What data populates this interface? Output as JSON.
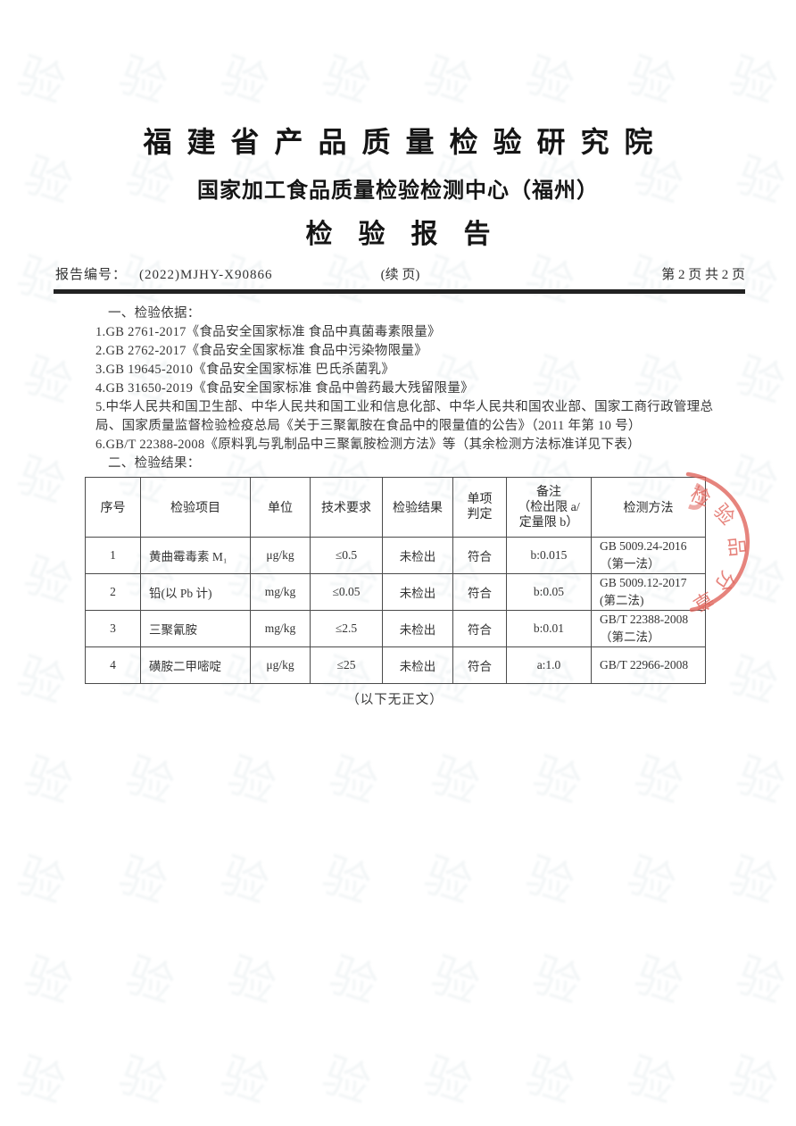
{
  "header": {
    "institute": "福建省产品质量检验研究院",
    "center": "国家加工食品质量检验检测中心（福州）",
    "report_title": "检验报告"
  },
  "meta": {
    "report_no_label": "报告编号：",
    "report_no": "(2022)MJHY-X90866",
    "continuation": "(续  页)",
    "page_info": "第 2 页  共 2 页"
  },
  "basis": {
    "heading": "一、检验依据：",
    "items": [
      "1.GB 2761-2017《食品安全国家标准 食品中真菌毒素限量》",
      "2.GB 2762-2017《食品安全国家标准 食品中污染物限量》",
      "3.GB 19645-2010《食品安全国家标准 巴氏杀菌乳》",
      "4.GB 31650-2019《食品安全国家标准 食品中兽药最大残留限量》",
      "5.中华人民共和国卫生部、中华人民共和国工业和信息化部、中华人民共和国农业部、国家工商行政管理总局、国家质量监督检验检疫总局《关于三聚氰胺在食品中的限量值的公告》（2011 年第 10 号）",
      "6.GB/T 22388-2008《原料乳与乳制品中三聚氰胺检测方法》等（其余检测方法标准详见下表）"
    ],
    "results_heading": "二、检验结果："
  },
  "table": {
    "h_no": "序号",
    "h_item": "检验项目",
    "h_unit": "单位",
    "h_req": "技术要求",
    "h_result": "检验结果",
    "h_judge_l1": "单项",
    "h_judge_l2": "判定",
    "h_remark_l1": "备注",
    "h_remark_l2": "（检出限 a/",
    "h_remark_l3": "定量限 b）",
    "h_method": "检测方法",
    "rows": [
      {
        "no": "1",
        "item": "黄曲霉毒素 M₁",
        "unit": "μg/kg",
        "req": "≤0.5",
        "result": "未检出",
        "judge": "符合",
        "remark": "b:0.015",
        "method": "GB 5009.24-2016 （第一法）"
      },
      {
        "no": "2",
        "item": "铅(以 Pb 计)",
        "unit": "mg/kg",
        "req": "≤0.05",
        "result": "未检出",
        "judge": "符合",
        "remark": "b:0.05",
        "method": "GB 5009.12-2017 (第二法)"
      },
      {
        "no": "3",
        "item": "三聚氰胺",
        "unit": "mg/kg",
        "req": "≤2.5",
        "result": "未检出",
        "judge": "符合",
        "remark": "b:0.01",
        "method": "GB/T 22388-2008 （第二法）"
      },
      {
        "no": "4",
        "item": "磺胺二甲嘧啶",
        "unit": "μg/kg",
        "req": "≤25",
        "result": "未检出",
        "judge": "符合",
        "remark": "a:1.0",
        "method": "GB/T 22966-2008"
      }
    ]
  },
  "footer": {
    "no_more_text": "（以下无正文）"
  },
  "stamp": {
    "color": "#e0655c",
    "chars": [
      "检",
      "验",
      "品",
      "分",
      "章"
    ]
  },
  "watermark": {
    "char": "验"
  }
}
